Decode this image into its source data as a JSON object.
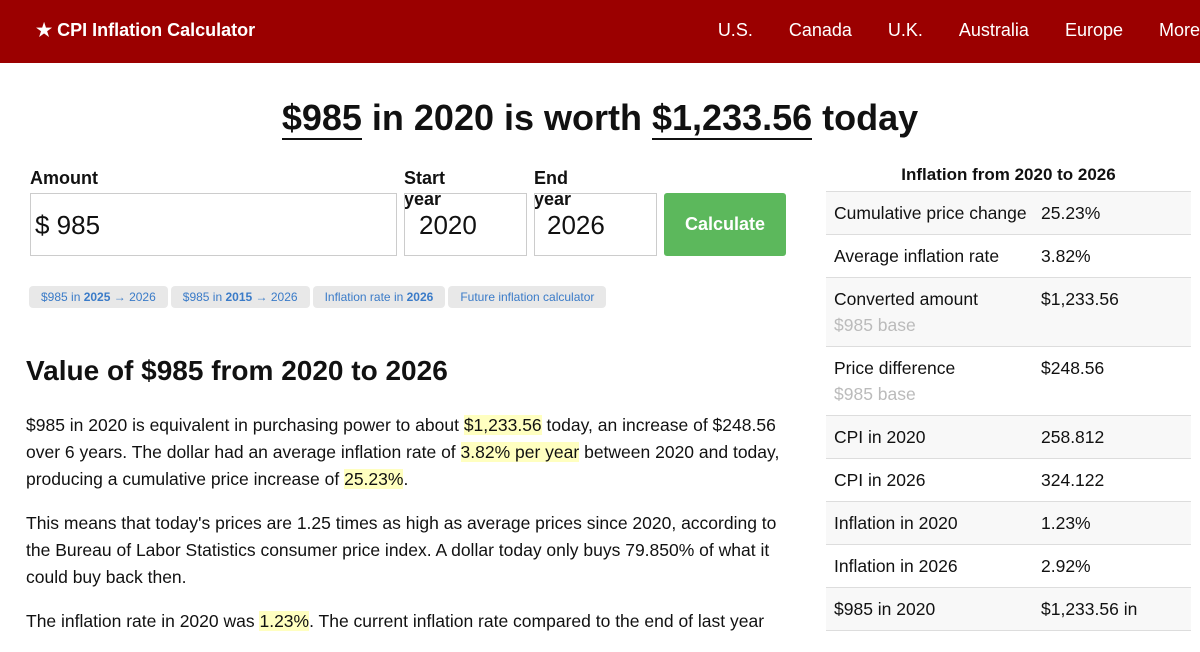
{
  "header": {
    "brand": "★ CPI Inflation Calculator",
    "nav": [
      "U.S.",
      "Canada",
      "U.K.",
      "Australia",
      "Europe",
      "More"
    ]
  },
  "headline": {
    "amount": "$985",
    "mid1": " in 2020 is worth ",
    "converted": "$1,233.56",
    "end": " today"
  },
  "form": {
    "amount_label": "Amount",
    "amount_value": "$ 985",
    "start_label": "Start year",
    "start_value": "2020",
    "end_label": "End year",
    "end_value": "2026",
    "calculate": "Calculate"
  },
  "chips": [
    {
      "a": "$985 in ",
      "b": "2025",
      "c": " → 2026"
    },
    {
      "a": "$985 in ",
      "b": "2015",
      "c": " → 2026"
    },
    {
      "a": "Inflation rate in ",
      "b": "2026",
      "c": ""
    },
    {
      "a": "Future inflation calculator",
      "b": "",
      "c": ""
    }
  ],
  "section": {
    "title": "Value of $985 from 2020 to 2026",
    "p1": [
      "$985 in 2020 is equivalent in purchasing power to about ",
      "$1,233.56",
      " today, an increase of $248.56 over 6 years. The dollar had an average inflation rate of ",
      "3.82% per year",
      " between 2020 and today, producing a cumulative price increase of ",
      "25.23%",
      "."
    ],
    "p2": "This means that today's prices are 1.25 times as high as average prices since 2020, according to the Bureau of Labor Statistics consumer price index. A dollar today only buys 79.850% of what it could buy back then.",
    "p3": [
      "The inflation rate in 2020 was ",
      "1.23%",
      ". The current inflation rate compared to the end of last year"
    ]
  },
  "table": {
    "title": "Inflation from 2020 to 2026",
    "rows": [
      {
        "k": "Cumulative price change",
        "v": "25.23%",
        "sub": ""
      },
      {
        "k": "Average inflation rate",
        "v": "3.82%",
        "sub": ""
      },
      {
        "k": "Converted amount",
        "v": "$1,233.56",
        "sub": "$985 base"
      },
      {
        "k": "Price difference",
        "v": "$248.56",
        "sub": "$985 base"
      },
      {
        "k": "CPI in 2020",
        "v": "258.812",
        "sub": ""
      },
      {
        "k": "CPI in 2026",
        "v": "324.122",
        "sub": ""
      },
      {
        "k": "Inflation in 2020",
        "v": "1.23%",
        "sub": ""
      },
      {
        "k": "Inflation in 2026",
        "v": "2.92%",
        "sub": ""
      },
      {
        "k": "$985 in 2020",
        "v": "$1,233.56 in",
        "sub": ""
      }
    ]
  }
}
